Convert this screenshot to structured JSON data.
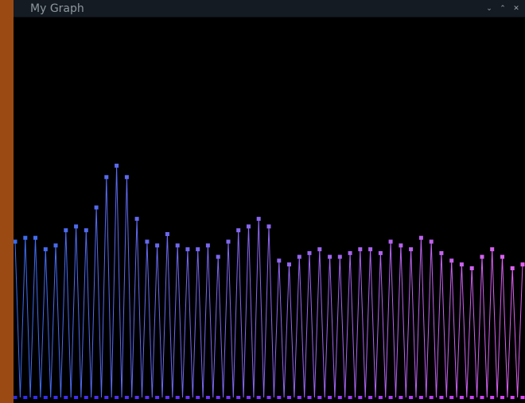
{
  "window": {
    "title": "My Graph",
    "controls": {
      "minimize": "⌄",
      "maximize": "⌃",
      "close": "✕"
    }
  },
  "colors": {
    "strip": "#9a4a12",
    "background": "#000000",
    "titlebar": "#141b22",
    "series_start": "#3a6cf0",
    "series_end": "#e060f0",
    "baseline_start": "#2a2cff",
    "baseline_end": "#e040ff"
  },
  "chart_data": {
    "type": "line",
    "title": "",
    "xlabel": "",
    "ylabel": "",
    "grid": false,
    "legend": "none",
    "xlim": [
      0,
      50
    ],
    "ylim": [
      0,
      100
    ],
    "series": [
      {
        "values": [
          41,
          42,
          42,
          39,
          40,
          44,
          45,
          44,
          50,
          58,
          61,
          58,
          47,
          41,
          40,
          43,
          40,
          39,
          39,
          40,
          37,
          41,
          44,
          45,
          47,
          45,
          36,
          35,
          37,
          38,
          39,
          37,
          37,
          38,
          39,
          39,
          38,
          41,
          40,
          39,
          42,
          41,
          38,
          36,
          35,
          34,
          37,
          39,
          37,
          34,
          35
        ]
      }
    ]
  }
}
